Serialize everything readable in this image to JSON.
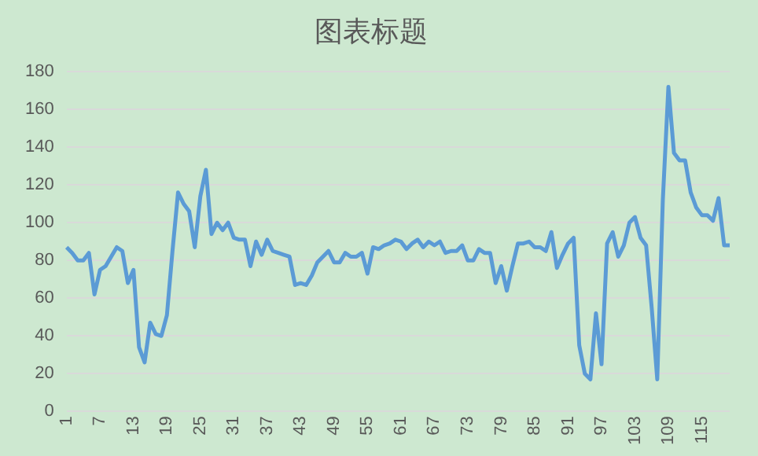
{
  "chart_data": {
    "type": "line",
    "title": "图表标题",
    "categories": [
      "1",
      null,
      null,
      null,
      null,
      null,
      "7",
      null,
      null,
      null,
      null,
      null,
      "13",
      null,
      null,
      null,
      null,
      null,
      "19",
      null,
      null,
      null,
      null,
      null,
      "25",
      null,
      null,
      null,
      null,
      null,
      "31",
      null,
      null,
      null,
      null,
      null,
      "37",
      null,
      null,
      null,
      null,
      null,
      "43",
      null,
      null,
      null,
      null,
      null,
      "49",
      null,
      null,
      null,
      null,
      null,
      "55",
      null,
      null,
      null,
      null,
      null,
      "61",
      null,
      null,
      null,
      null,
      null,
      "67",
      null,
      null,
      null,
      null,
      null,
      "73",
      null,
      null,
      null,
      null,
      null,
      "79",
      null,
      null,
      null,
      null,
      null,
      "85",
      null,
      null,
      null,
      null,
      null,
      "91",
      null,
      null,
      null,
      null,
      null,
      "97",
      null,
      null,
      null,
      null,
      null,
      "103",
      null,
      null,
      null,
      null,
      null,
      "109",
      null,
      null,
      null,
      null,
      null,
      "115",
      null,
      null,
      null,
      null,
      null
    ],
    "series": [
      {
        "color": "#5b9bd5",
        "values": [
          87,
          84,
          80,
          80,
          84,
          62,
          75,
          77,
          82,
          87,
          85,
          68,
          75,
          34,
          26,
          47,
          41,
          40,
          51,
          85,
          116,
          110,
          106,
          87,
          114,
          128,
          94,
          100,
          96,
          100,
          92,
          91,
          91,
          77,
          90,
          83,
          91,
          85,
          84,
          83,
          82,
          67,
          68,
          67,
          72,
          79,
          82,
          85,
          79,
          79,
          84,
          82,
          82,
          84,
          73,
          87,
          86,
          88,
          89,
          91,
          90,
          86,
          89,
          91,
          87,
          90,
          88,
          90,
          84,
          85,
          85,
          88,
          80,
          80,
          86,
          84,
          84,
          68,
          77,
          64,
          77,
          89,
          89,
          90,
          87,
          87,
          85,
          95,
          76,
          83,
          89,
          92,
          35,
          20,
          17,
          52,
          25,
          89,
          95,
          82,
          88,
          100,
          103,
          92,
          88,
          55,
          17,
          112,
          172,
          137,
          133,
          133,
          116,
          108,
          104,
          104,
          101,
          113,
          88,
          88
        ]
      }
    ],
    "ylim": [
      0,
      180
    ],
    "yticks": [
      0,
      20,
      40,
      60,
      80,
      100,
      120,
      140,
      160,
      180
    ],
    "grid": "y",
    "legend": false,
    "marker": "none",
    "line_style": "solid"
  }
}
